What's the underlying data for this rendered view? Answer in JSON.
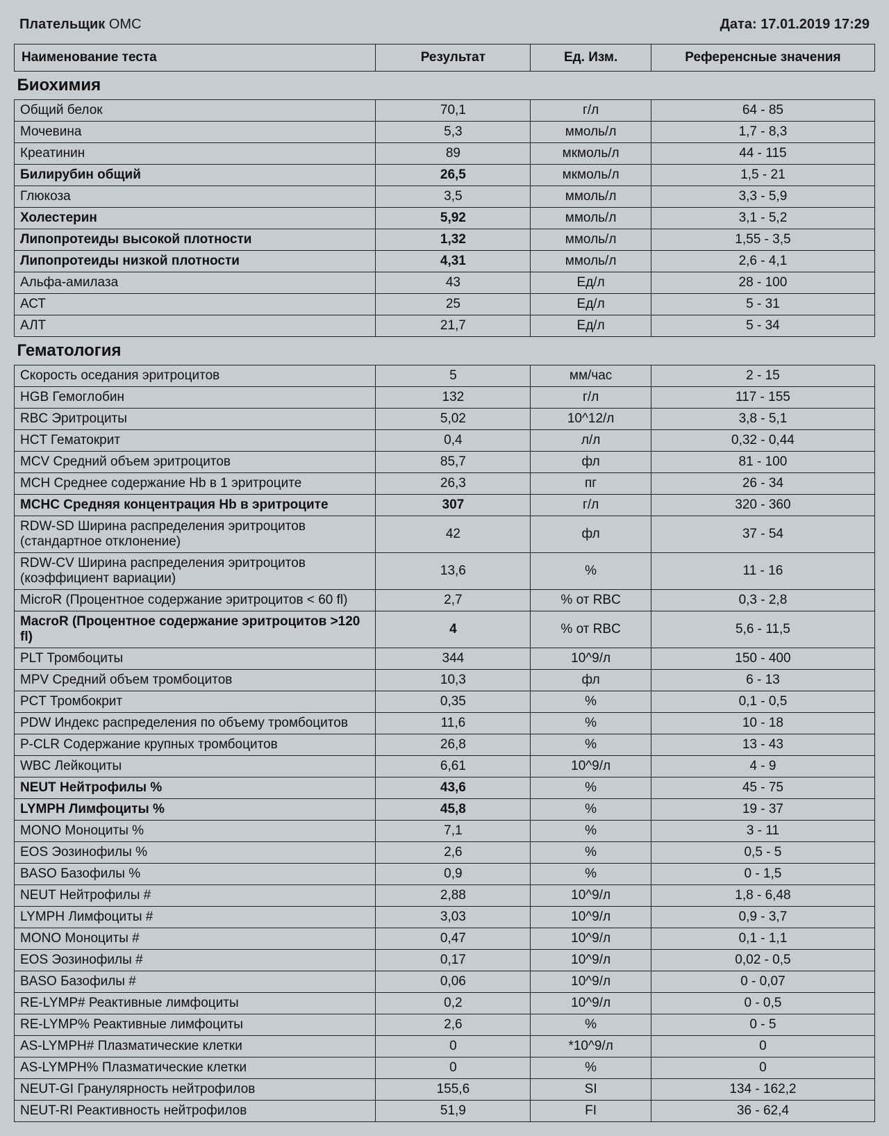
{
  "header": {
    "payer_label": "Плательщик",
    "payer_value": "ОМС",
    "date_label": "Дата:",
    "date_value": "17.01.2019 17:29"
  },
  "columns": {
    "test": "Наименование теста",
    "result": "Результат",
    "unit": "Ед. Изм.",
    "reference": "Референсные значения"
  },
  "sections": [
    {
      "title": "Биохимия",
      "rows": [
        {
          "test": "Общий белок",
          "result": "70,1",
          "unit": "г/л",
          "ref": "64 - 85",
          "bold": false
        },
        {
          "test": "Мочевина",
          "result": "5,3",
          "unit": "ммоль/л",
          "ref": "1,7 - 8,3",
          "bold": false
        },
        {
          "test": "Креатинин",
          "result": "89",
          "unit": "мкмоль/л",
          "ref": "44 - 115",
          "bold": false
        },
        {
          "test": "Билирубин общий",
          "result": "26,5",
          "unit": "мкмоль/л",
          "ref": "1,5 - 21",
          "bold": true
        },
        {
          "test": "Глюкоза",
          "result": "3,5",
          "unit": "ммоль/л",
          "ref": "3,3 - 5,9",
          "bold": false
        },
        {
          "test": "Холестерин",
          "result": "5,92",
          "unit": "ммоль/л",
          "ref": "3,1 - 5,2",
          "bold": true
        },
        {
          "test": "Липопротеиды высокой плотности",
          "result": "1,32",
          "unit": "ммоль/л",
          "ref": "1,55 - 3,5",
          "bold": true
        },
        {
          "test": "Липопротеиды низкой плотности",
          "result": "4,31",
          "unit": "ммоль/л",
          "ref": "2,6 - 4,1",
          "bold": true
        },
        {
          "test": "Альфа-амилаза",
          "result": "43",
          "unit": "Ед/л",
          "ref": "28 - 100",
          "bold": false
        },
        {
          "test": "АСТ",
          "result": "25",
          "unit": "Ед/л",
          "ref": "5 - 31",
          "bold": false
        },
        {
          "test": "АЛТ",
          "result": "21,7",
          "unit": "Ед/л",
          "ref": "5 - 34",
          "bold": false
        }
      ]
    },
    {
      "title": "Гематология",
      "rows": [
        {
          "test": "Скорость оседания эритроцитов",
          "result": "5",
          "unit": "мм/час",
          "ref": "2 - 15",
          "bold": false
        },
        {
          "test": "HGB Гемоглобин",
          "result": "132",
          "unit": "г/л",
          "ref": "117 - 155",
          "bold": false
        },
        {
          "test": "RBC Эритроциты",
          "result": "5,02",
          "unit": "10^12/л",
          "ref": "3,8 - 5,1",
          "bold": false
        },
        {
          "test": "HCT Гематокрит",
          "result": "0,4",
          "unit": "л/л",
          "ref": "0,32 - 0,44",
          "bold": false
        },
        {
          "test": "MCV Средний объем эритроцитов",
          "result": "85,7",
          "unit": "фл",
          "ref": "81 - 100",
          "bold": false
        },
        {
          "test": "MCH Среднее содержание Hb в 1 эритроците",
          "result": "26,3",
          "unit": "пг",
          "ref": "26 - 34",
          "bold": false
        },
        {
          "test": "MCHC Средняя концентрация Hb в эритроците",
          "result": "307",
          "unit": "г/л",
          "ref": "320 - 360",
          "bold": true
        },
        {
          "test": "RDW-SD Ширина распределения эритроцитов (стандартное отклонение)",
          "result": "42",
          "unit": "фл",
          "ref": "37 - 54",
          "bold": false
        },
        {
          "test": "RDW-CV Ширина распределения  эритроцитов (коэффициент вариации)",
          "result": "13,6",
          "unit": "%",
          "ref": "11 - 16",
          "bold": false
        },
        {
          "test": "MicroR (Процентное содержание эритроцитов < 60 fl)",
          "result": "2,7",
          "unit": "% от RBC",
          "ref": "0,3 - 2,8",
          "bold": false
        },
        {
          "test": "MacroR (Процентное содержание эритроцитов >120 fl)",
          "result": "4",
          "unit": "% от RBC",
          "ref": "5,6 - 11,5",
          "bold": true
        },
        {
          "test": "PLT Тромбоциты",
          "result": "344",
          "unit": "10^9/л",
          "ref": "150 - 400",
          "bold": false
        },
        {
          "test": "MPV Средний объем тромбоцитов",
          "result": "10,3",
          "unit": "фл",
          "ref": "6 - 13",
          "bold": false
        },
        {
          "test": "PCT Тромбокрит",
          "result": "0,35",
          "unit": "%",
          "ref": "0,1 - 0,5",
          "bold": false
        },
        {
          "test": "PDW Индекс распределения по объему тромбоцитов",
          "result": "11,6",
          "unit": "%",
          "ref": "10 - 18",
          "bold": false
        },
        {
          "test": "P-CLR Содержание крупных тромбоцитов",
          "result": "26,8",
          "unit": "%",
          "ref": "13 - 43",
          "bold": false
        },
        {
          "test": "WBC Лейкоциты",
          "result": "6,61",
          "unit": "10^9/л",
          "ref": "4 - 9",
          "bold": false
        },
        {
          "test": "NEUT Нейтрофилы %",
          "result": "43,6",
          "unit": "%",
          "ref": "45 - 75",
          "bold": true
        },
        {
          "test": "LYMPH Лимфоциты %",
          "result": "45,8",
          "unit": "%",
          "ref": "19 - 37",
          "bold": true
        },
        {
          "test": "MONO Моноциты %",
          "result": "7,1",
          "unit": "%",
          "ref": "3 - 11",
          "bold": false
        },
        {
          "test": "EOS Эозинофилы %",
          "result": "2,6",
          "unit": "%",
          "ref": "0,5 - 5",
          "bold": false
        },
        {
          "test": "BASO Базофилы %",
          "result": "0,9",
          "unit": "%",
          "ref": "0 - 1,5",
          "bold": false
        },
        {
          "test": "NEUT Нейтрофилы #",
          "result": "2,88",
          "unit": "10^9/л",
          "ref": "1,8 - 6,48",
          "bold": false
        },
        {
          "test": "LYMPH Лимфоциты #",
          "result": "3,03",
          "unit": "10^9/л",
          "ref": "0,9 - 3,7",
          "bold": false
        },
        {
          "test": "MONO Моноциты #",
          "result": "0,47",
          "unit": "10^9/л",
          "ref": "0,1 - 1,1",
          "bold": false
        },
        {
          "test": "EOS Эозинофилы #",
          "result": "0,17",
          "unit": "10^9/л",
          "ref": "0,02 - 0,5",
          "bold": false
        },
        {
          "test": "BASO Базофилы #",
          "result": "0,06",
          "unit": "10^9/л",
          "ref": "0 - 0,07",
          "bold": false
        },
        {
          "test": "RE-LYMP# Реактивные лимфоциты",
          "result": "0,2",
          "unit": "10^9/л",
          "ref": "0 - 0,5",
          "bold": false
        },
        {
          "test": "RE-LYMP% Реактивные лимфоциты",
          "result": "2,6",
          "unit": "%",
          "ref": "0 - 5",
          "bold": false
        },
        {
          "test": "AS-LYMPH# Плазматические клетки",
          "result": "0",
          "unit": "*10^9/л",
          "ref": "0",
          "bold": false
        },
        {
          "test": "AS-LYMPH% Плазматические клетки",
          "result": "0",
          "unit": "%",
          "ref": "0",
          "bold": false
        },
        {
          "test": "NEUT-GI Гранулярность нейтрофилов",
          "result": "155,6",
          "unit": "SI",
          "ref": "134 - 162,2",
          "bold": false
        },
        {
          "test": "NEUT-RI Реактивность нейтрофилов",
          "result": "51,9",
          "unit": "FI",
          "ref": "36 - 62,4",
          "bold": false
        }
      ]
    }
  ]
}
